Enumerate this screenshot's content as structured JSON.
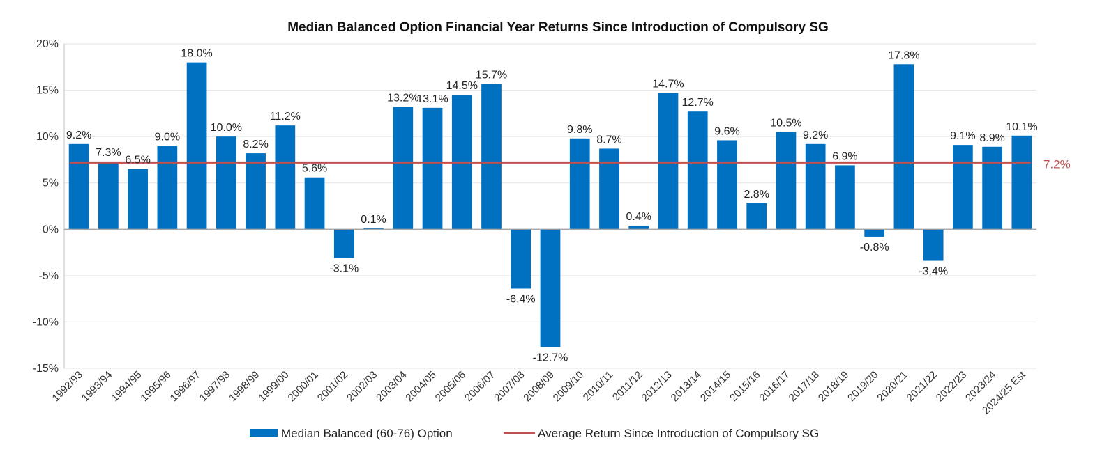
{
  "chart_data": {
    "type": "bar",
    "title": "Median Balanced Option Financial Year Returns Since Introduction of Compulsory SG",
    "xlabel": "",
    "ylabel": "",
    "ylim": [
      -15,
      20
    ],
    "yticks": [
      20,
      15,
      10,
      5,
      0,
      -5,
      -10,
      -15
    ],
    "ytick_labels": [
      "20%",
      "15%",
      "10%",
      "5%",
      "0%",
      "-5%",
      "-10%",
      "-15%"
    ],
    "grid": true,
    "categories": [
      "1992/93",
      "1993/94",
      "1994/95",
      "1995/96",
      "1996/97",
      "1997/98",
      "1998/99",
      "1999/00",
      "2000/01",
      "2001/02",
      "2002/03",
      "2003/04",
      "2004/05",
      "2005/06",
      "2006/07",
      "2007/08",
      "2008/09",
      "2009/10",
      "2010/11",
      "2011/12",
      "2012/13",
      "2013/14",
      "2014/15",
      "2015/16",
      "2016/17",
      "2017/18",
      "2018/19",
      "2019/20",
      "2020/21",
      "2021/22",
      "2022/23",
      "2023/24",
      "2024/25 Est"
    ],
    "series": [
      {
        "name": "Median Balanced (60-76) Option",
        "type": "bar",
        "color": "#0070c0",
        "values": [
          9.2,
          7.3,
          6.5,
          9.0,
          18.0,
          10.0,
          8.2,
          11.2,
          5.6,
          -3.1,
          0.1,
          13.2,
          13.1,
          14.5,
          15.7,
          -6.4,
          -12.7,
          9.8,
          8.7,
          0.4,
          14.7,
          12.7,
          9.6,
          2.8,
          10.5,
          9.2,
          6.9,
          -0.8,
          17.8,
          -3.4,
          9.1,
          8.9,
          10.1
        ],
        "labels": [
          "9.2%",
          "7.3%",
          "6.5%",
          "9.0%",
          "18.0%",
          "10.0%",
          "8.2%",
          "11.2%",
          "5.6%",
          "-3.1%",
          "0.1%",
          "13.2%",
          "13.1%",
          "14.5%",
          "15.7%",
          "-6.4%",
          "-12.7%",
          "9.8%",
          "8.7%",
          "0.4%",
          "14.7%",
          "12.7%",
          "9.6%",
          "2.8%",
          "10.5%",
          "9.2%",
          "6.9%",
          "-0.8%",
          "17.8%",
          "-3.4%",
          "9.1%",
          "8.9%",
          "10.1%"
        ]
      },
      {
        "name": "Average Return Since Introduction of Compulsory SG",
        "type": "line",
        "color": "#c0504d",
        "value": 7.2,
        "label": "7.2%"
      }
    ],
    "legend": {
      "placement": "bottom-center",
      "entries": [
        "Median Balanced (60-76) Option",
        "Average Return Since Introduction of Compulsory SG"
      ]
    }
  }
}
